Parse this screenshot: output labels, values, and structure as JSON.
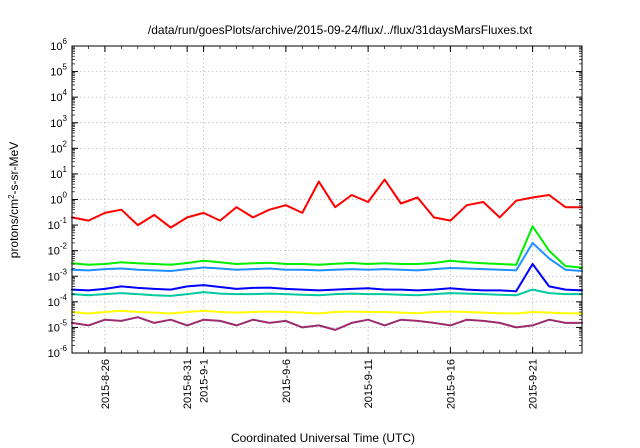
{
  "chart_data": {
    "type": "line",
    "title": "/data/run/goesPlots/archive/2015-09-24/flux/../flux/31daysMarsFluxes.txt",
    "xlabel": "Coordinated Universal Time (UTC)",
    "ylabel_parts": [
      "protons/cm",
      "2",
      "-s-sr-MeV"
    ],
    "y_scale": "log",
    "ylim": [
      1e-06,
      1000000.0
    ],
    "xlim": [
      "2015-08-24",
      "2015-09-24"
    ],
    "grid": true,
    "y_ticks": [
      {
        "base": "10",
        "exp": "-6"
      },
      {
        "base": "10",
        "exp": "-5"
      },
      {
        "base": "10",
        "exp": "-4"
      },
      {
        "base": "10",
        "exp": "-3"
      },
      {
        "base": "10",
        "exp": "-2"
      },
      {
        "base": "10",
        "exp": "-1"
      },
      {
        "base": "10",
        "exp": "0"
      },
      {
        "base": "10",
        "exp": "1"
      },
      {
        "base": "10",
        "exp": "2"
      },
      {
        "base": "10",
        "exp": "3"
      },
      {
        "base": "10",
        "exp": "4"
      },
      {
        "base": "10",
        "exp": "5"
      },
      {
        "base": "10",
        "exp": "6"
      }
    ],
    "x_ticks": [
      {
        "date": "2015-08-26",
        "label": "2015-8-26"
      },
      {
        "date": "2015-08-31",
        "label": "2015-8-31"
      },
      {
        "date": "2015-09-01",
        "label": "2015-9-1"
      },
      {
        "date": "2015-09-06",
        "label": "2015-9-6"
      },
      {
        "date": "2015-09-11",
        "label": "2015-9-11"
      },
      {
        "date": "2015-09-16",
        "label": "2015-9-16"
      },
      {
        "date": "2015-09-21",
        "label": "2015-9-21"
      }
    ],
    "series": [
      {
        "color": "#ff0000",
        "x": [
          "2015-08-24",
          "2015-08-25",
          "2015-08-26",
          "2015-08-27",
          "2015-08-28",
          "2015-08-29",
          "2015-08-30",
          "2015-08-31",
          "2015-09-01",
          "2015-09-02",
          "2015-09-03",
          "2015-09-04",
          "2015-09-05",
          "2015-09-06",
          "2015-09-07",
          "2015-09-08",
          "2015-09-09",
          "2015-09-10",
          "2015-09-11",
          "2015-09-12",
          "2015-09-13",
          "2015-09-14",
          "2015-09-15",
          "2015-09-16",
          "2015-09-17",
          "2015-09-18",
          "2015-09-19",
          "2015-09-20",
          "2015-09-21",
          "2015-09-22",
          "2015-09-23",
          "2015-09-24"
        ],
        "y": [
          0.2,
          0.15,
          0.3,
          0.4,
          0.1,
          0.25,
          0.08,
          0.2,
          0.3,
          0.15,
          0.5,
          0.2,
          0.4,
          0.6,
          0.3,
          5,
          0.5,
          1.5,
          0.8,
          6,
          0.7,
          1.2,
          0.2,
          0.15,
          0.6,
          0.8,
          0.2,
          0.9,
          1.2,
          1.5,
          0.5,
          0.5
        ]
      },
      {
        "color": "#00ee00",
        "x": [
          "2015-08-24",
          "2015-08-25",
          "2015-08-26",
          "2015-08-27",
          "2015-08-28",
          "2015-08-29",
          "2015-08-30",
          "2015-08-31",
          "2015-09-01",
          "2015-09-02",
          "2015-09-03",
          "2015-09-04",
          "2015-09-05",
          "2015-09-06",
          "2015-09-07",
          "2015-09-08",
          "2015-09-09",
          "2015-09-10",
          "2015-09-11",
          "2015-09-12",
          "2015-09-13",
          "2015-09-14",
          "2015-09-15",
          "2015-09-16",
          "2015-09-17",
          "2015-09-18",
          "2015-09-19",
          "2015-09-20",
          "2015-09-21",
          "2015-09-22",
          "2015-09-23",
          "2015-09-24"
        ],
        "y": [
          0.0032,
          0.0028,
          0.003,
          0.0035,
          0.0032,
          0.003,
          0.0028,
          0.0033,
          0.004,
          0.0035,
          0.003,
          0.0032,
          0.0034,
          0.003,
          0.003,
          0.0028,
          0.0031,
          0.0033,
          0.003,
          0.0032,
          0.003,
          0.003,
          0.0033,
          0.004,
          0.0035,
          0.0032,
          0.003,
          0.0028,
          0.09,
          0.01,
          0.0025,
          0.0022
        ]
      },
      {
        "color": "#1e90ff",
        "x": [
          "2015-08-24",
          "2015-08-25",
          "2015-08-26",
          "2015-08-27",
          "2015-08-28",
          "2015-08-29",
          "2015-08-30",
          "2015-08-31",
          "2015-09-01",
          "2015-09-02",
          "2015-09-03",
          "2015-09-04",
          "2015-09-05",
          "2015-09-06",
          "2015-09-07",
          "2015-09-08",
          "2015-09-09",
          "2015-09-10",
          "2015-09-11",
          "2015-09-12",
          "2015-09-13",
          "2015-09-14",
          "2015-09-15",
          "2015-09-16",
          "2015-09-17",
          "2015-09-18",
          "2015-09-19",
          "2015-09-20",
          "2015-09-21",
          "2015-09-22",
          "2015-09-23",
          "2015-09-24"
        ],
        "y": [
          0.0018,
          0.0017,
          0.0019,
          0.002,
          0.0018,
          0.0017,
          0.0016,
          0.0019,
          0.0022,
          0.002,
          0.0018,
          0.0019,
          0.002,
          0.0018,
          0.0018,
          0.0017,
          0.0018,
          0.0019,
          0.0018,
          0.0019,
          0.0018,
          0.0017,
          0.0019,
          0.0021,
          0.002,
          0.0019,
          0.0018,
          0.0017,
          0.02,
          0.005,
          0.0018,
          0.0016
        ]
      },
      {
        "color": "#00c8a0",
        "x": [
          "2015-08-24",
          "2015-08-25",
          "2015-08-26",
          "2015-08-27",
          "2015-08-28",
          "2015-08-29",
          "2015-08-30",
          "2015-08-31",
          "2015-09-01",
          "2015-09-02",
          "2015-09-03",
          "2015-09-04",
          "2015-09-05",
          "2015-09-06",
          "2015-09-07",
          "2015-09-08",
          "2015-09-09",
          "2015-09-10",
          "2015-09-11",
          "2015-09-12",
          "2015-09-13",
          "2015-09-14",
          "2015-09-15",
          "2015-09-16",
          "2015-09-17",
          "2015-09-18",
          "2015-09-19",
          "2015-09-20",
          "2015-09-21",
          "2015-09-22",
          "2015-09-23",
          "2015-09-24"
        ],
        "y": [
          0.0002,
          0.00018,
          0.0002,
          0.00022,
          0.0002,
          0.00018,
          0.00017,
          0.0002,
          0.00024,
          0.00021,
          0.0002,
          0.0002,
          0.00021,
          0.0002,
          0.00019,
          0.00018,
          0.0002,
          0.00021,
          0.0002,
          0.0002,
          0.00019,
          0.00018,
          0.0002,
          0.00022,
          0.00021,
          0.0002,
          0.00019,
          0.00018,
          0.0003,
          0.00022,
          0.0002,
          0.0002
        ]
      },
      {
        "color": "#0000ff",
        "x": [
          "2015-08-24",
          "2015-08-25",
          "2015-08-26",
          "2015-08-27",
          "2015-08-28",
          "2015-08-29",
          "2015-08-30",
          "2015-08-31",
          "2015-09-01",
          "2015-09-02",
          "2015-09-03",
          "2015-09-04",
          "2015-09-05",
          "2015-09-06",
          "2015-09-07",
          "2015-09-08",
          "2015-09-09",
          "2015-09-10",
          "2015-09-11",
          "2015-09-12",
          "2015-09-13",
          "2015-09-14",
          "2015-09-15",
          "2015-09-16",
          "2015-09-17",
          "2015-09-18",
          "2015-09-19",
          "2015-09-20",
          "2015-09-21",
          "2015-09-22",
          "2015-09-23",
          "2015-09-24"
        ],
        "y": [
          0.0003,
          0.00028,
          0.00032,
          0.0004,
          0.00035,
          0.00032,
          0.0003,
          0.0004,
          0.00045,
          0.00038,
          0.00032,
          0.00035,
          0.00036,
          0.00032,
          0.0003,
          0.00028,
          0.0003,
          0.00032,
          0.00034,
          0.0003,
          0.0003,
          0.00028,
          0.0003,
          0.00034,
          0.0003,
          0.00028,
          0.00028,
          0.00026,
          0.003,
          0.0004,
          0.0003,
          0.00028
        ]
      },
      {
        "color": "#ffff00",
        "x": [
          "2015-08-24",
          "2015-08-25",
          "2015-08-26",
          "2015-08-27",
          "2015-08-28",
          "2015-08-29",
          "2015-08-30",
          "2015-08-31",
          "2015-09-01",
          "2015-09-02",
          "2015-09-03",
          "2015-09-04",
          "2015-09-05",
          "2015-09-06",
          "2015-09-07",
          "2015-09-08",
          "2015-09-09",
          "2015-09-10",
          "2015-09-11",
          "2015-09-12",
          "2015-09-13",
          "2015-09-14",
          "2015-09-15",
          "2015-09-16",
          "2015-09-17",
          "2015-09-18",
          "2015-09-19",
          "2015-09-20",
          "2015-09-21",
          "2015-09-22",
          "2015-09-23",
          "2015-09-24"
        ],
        "y": [
          4e-05,
          3.5e-05,
          4e-05,
          4.5e-05,
          4e-05,
          3.8e-05,
          3.5e-05,
          4e-05,
          4.5e-05,
          4e-05,
          3.8e-05,
          4e-05,
          4.2e-05,
          4e-05,
          3.8e-05,
          3.5e-05,
          4e-05,
          4.2e-05,
          4e-05,
          4e-05,
          3.8e-05,
          3.6e-05,
          4e-05,
          4.2e-05,
          4e-05,
          3.8e-05,
          3.6e-05,
          3.5e-05,
          4e-05,
          3.8e-05,
          3.6e-05,
          3.5e-05
        ]
      },
      {
        "color": "#9b2d6e",
        "x": [
          "2015-08-24",
          "2015-08-25",
          "2015-08-26",
          "2015-08-27",
          "2015-08-28",
          "2015-08-29",
          "2015-08-30",
          "2015-08-31",
          "2015-09-01",
          "2015-09-02",
          "2015-09-03",
          "2015-09-04",
          "2015-09-05",
          "2015-09-06",
          "2015-09-07",
          "2015-09-08",
          "2015-09-09",
          "2015-09-10",
          "2015-09-11",
          "2015-09-12",
          "2015-09-13",
          "2015-09-14",
          "2015-09-15",
          "2015-09-16",
          "2015-09-17",
          "2015-09-18",
          "2015-09-19",
          "2015-09-20",
          "2015-09-21",
          "2015-09-22",
          "2015-09-23",
          "2015-09-24"
        ],
        "y": [
          1.5e-05,
          1.2e-05,
          2e-05,
          1.8e-05,
          2.5e-05,
          1.5e-05,
          2e-05,
          1.2e-05,
          2e-05,
          1.8e-05,
          1.2e-05,
          2e-05,
          1.5e-05,
          1.8e-05,
          1e-05,
          1.2e-05,
          8e-06,
          1.5e-05,
          2e-05,
          1.2e-05,
          2e-05,
          1.8e-05,
          1.5e-05,
          1.2e-05,
          2e-05,
          1.8e-05,
          1.5e-05,
          1e-05,
          1.2e-05,
          2e-05,
          1.5e-05,
          1.5e-05
        ]
      }
    ]
  }
}
